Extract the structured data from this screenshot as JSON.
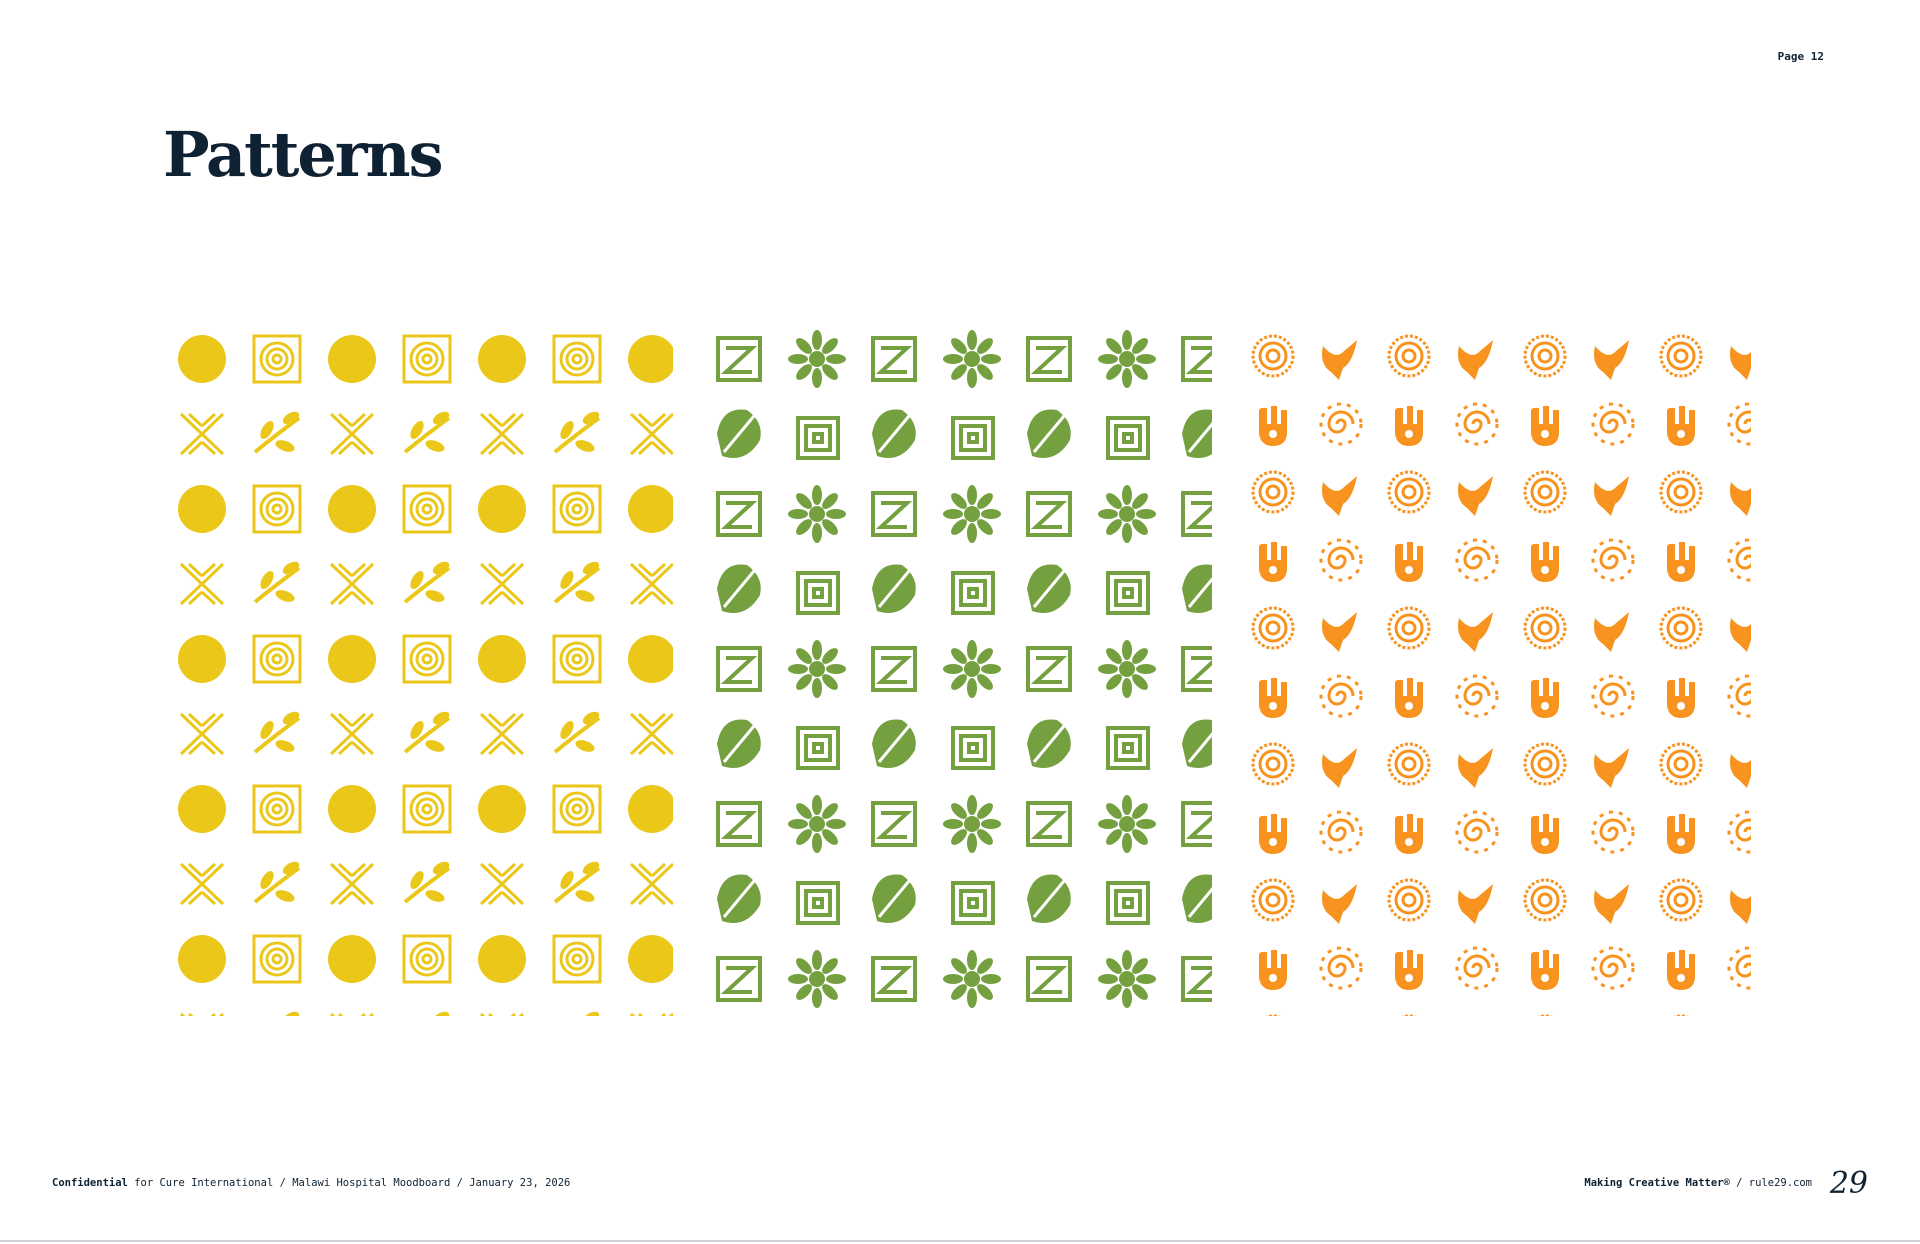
{
  "header": {
    "page": "Page 12",
    "title": "Patterns"
  },
  "footer": {
    "left": {
      "label": "Confidential",
      "text": "for Cure International / Malawi Hospital Moodboard / January 23, 2026"
    },
    "right": {
      "tagline": "Making Creative Matter®",
      "site": "/ rule29.com",
      "logo": "29"
    }
  }
}
